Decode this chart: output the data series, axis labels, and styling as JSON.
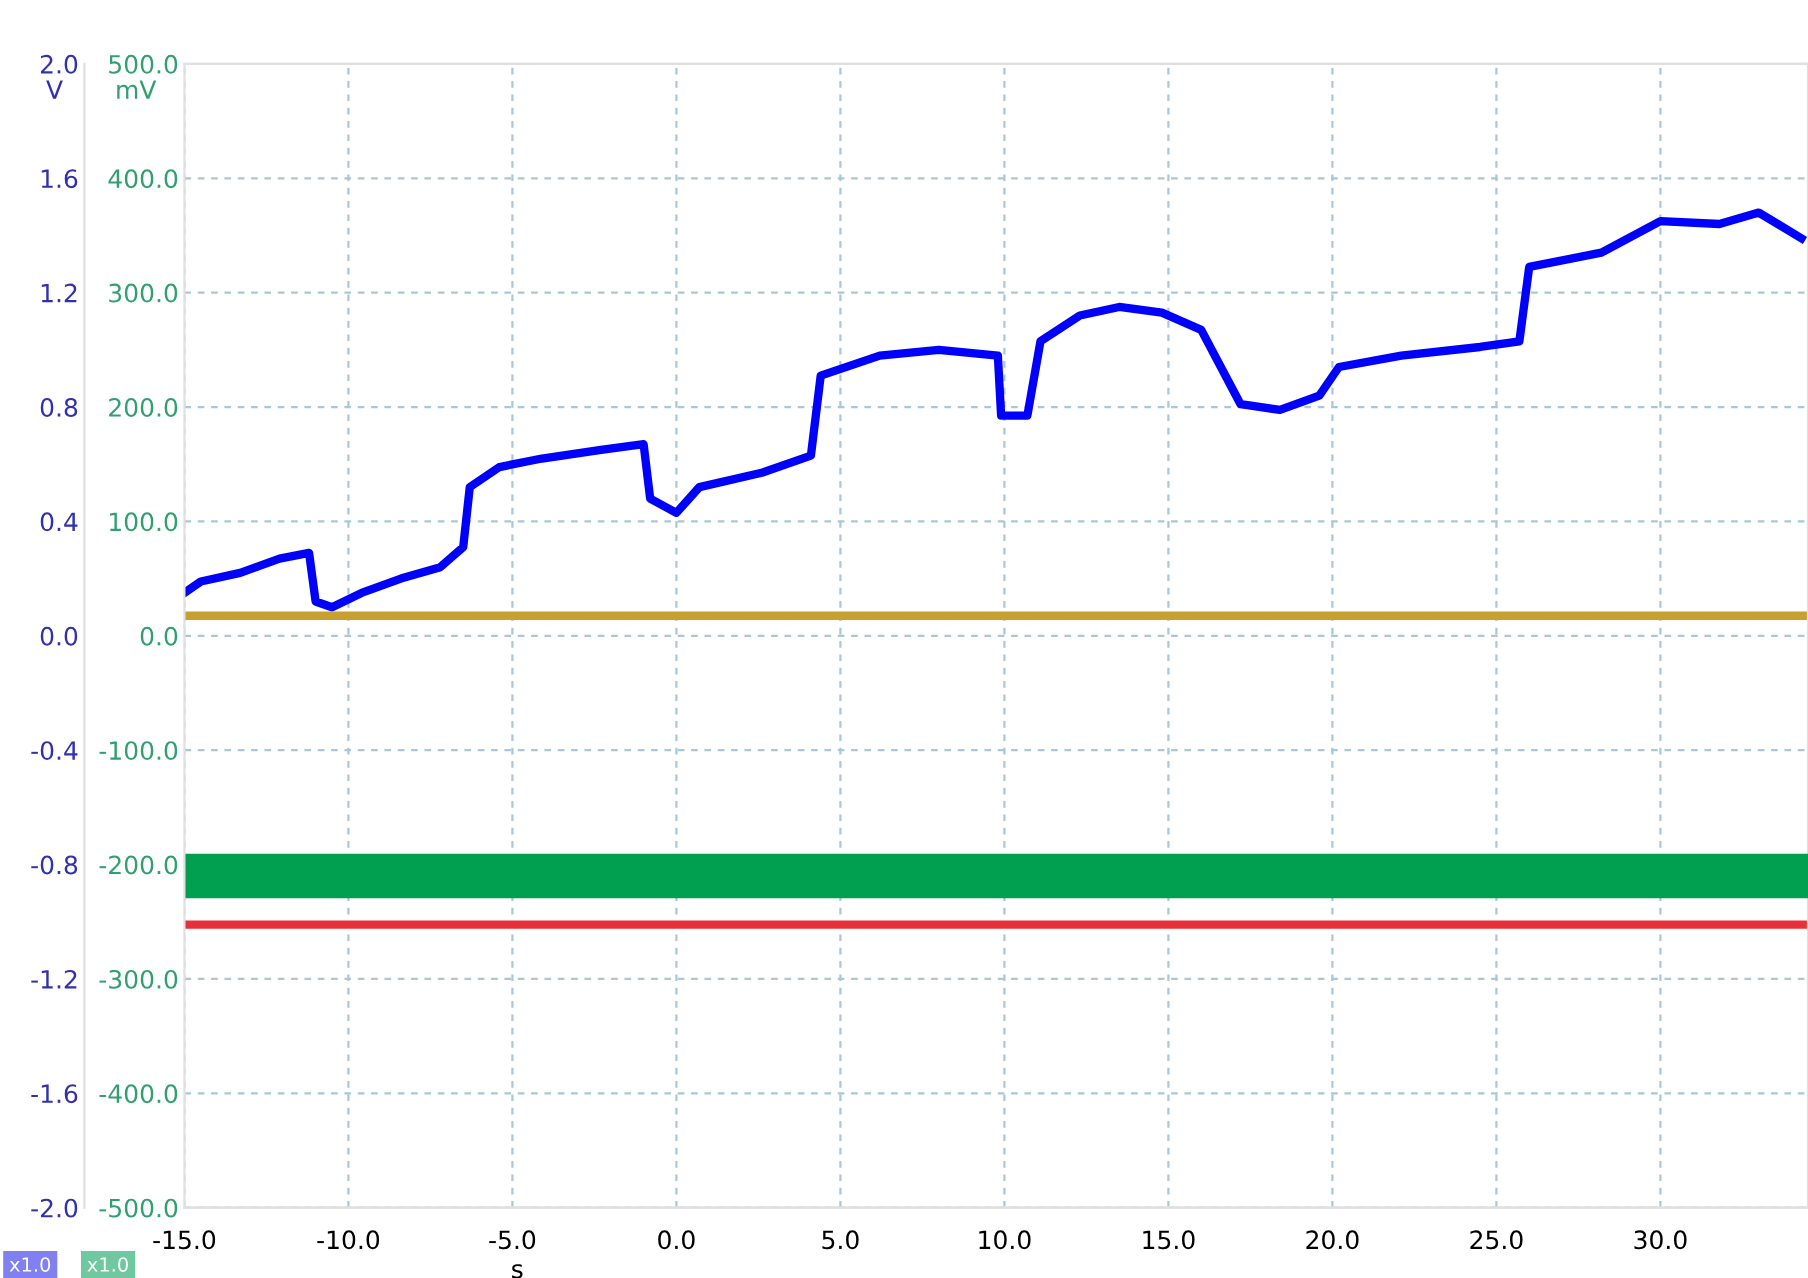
{
  "chart_data": {
    "type": "line",
    "xlabel": "s",
    "ylabel": "V",
    "y2label": "mV",
    "annotations": [
      "x1.0",
      "x1.0"
    ],
    "xlim": [
      -15,
      34.5
    ],
    "xticks": [
      {
        "value": -15,
        "label": "-15.0"
      },
      {
        "value": -10,
        "label": "-10.0"
      },
      {
        "value": -5,
        "label": "-5.0"
      },
      {
        "value": 0,
        "label": "0.0"
      },
      {
        "value": 5,
        "label": "5.0"
      },
      {
        "value": 10,
        "label": "10.0"
      },
      {
        "value": 15,
        "label": "15.0"
      },
      {
        "value": 20,
        "label": "20.0"
      },
      {
        "value": 25,
        "label": "25.0"
      },
      {
        "value": 30,
        "label": "30.0"
      }
    ],
    "ylim": [
      -2.0,
      2.0
    ],
    "yticks": [
      {
        "value": -2.0,
        "label": "-2.0"
      },
      {
        "value": -1.6,
        "label": "-1.6"
      },
      {
        "value": -1.2,
        "label": "-1.2"
      },
      {
        "value": -0.8,
        "label": "-0.8"
      },
      {
        "value": -0.4,
        "label": "-0.4"
      },
      {
        "value": 0,
        "label": "0.0"
      },
      {
        "value": 0.4,
        "label": "0.4"
      },
      {
        "value": 0.8,
        "label": "0.8"
      },
      {
        "value": 1.2,
        "label": "1.2"
      },
      {
        "value": 1.6,
        "label": "1.6"
      },
      {
        "value": 2.0,
        "label": "2.0"
      }
    ],
    "y2lim": [
      -500,
      500
    ],
    "y2ticks": [
      {
        "value": -500,
        "label": "-500.0"
      },
      {
        "value": -400,
        "label": "-400.0"
      },
      {
        "value": -300,
        "label": "-300.0"
      },
      {
        "value": -200,
        "label": "-200.0"
      },
      {
        "value": -100,
        "label": "-100.0"
      },
      {
        "value": 0,
        "label": "0.0"
      },
      {
        "value": 100,
        "label": "100.0"
      },
      {
        "value": 200,
        "label": "200.0"
      },
      {
        "value": 300,
        "label": "300.0"
      },
      {
        "value": 400,
        "label": "400.0"
      },
      {
        "value": 500,
        "label": "500.0"
      }
    ],
    "grid": true,
    "line_style": "solid",
    "series": [
      {
        "color": "#0000ff",
        "x": [
          -15,
          -14.5,
          -13.3,
          -12.1,
          -11.2,
          -11.0,
          -10.5,
          -9.6,
          -8.4,
          -7.2,
          -6.5,
          -6.3,
          -5.4,
          -4.1,
          -2.3,
          -1.0,
          -0.8,
          0,
          0.7,
          2.6,
          4.1,
          4.4,
          6.2,
          8.0,
          9.8,
          9.9,
          10.7,
          11.1,
          12.3,
          13.5,
          14.8,
          16.0,
          17.2,
          18.4,
          19.6,
          20.2,
          22.1,
          24.5,
          25.7,
          26.0,
          28.2,
          30.0,
          31.8,
          33.0,
          34.3
        ],
        "values": [
          0.15,
          0.19,
          0.22,
          0.27,
          0.29,
          0.12,
          0.1,
          0.15,
          0.2,
          0.24,
          0.31,
          0.52,
          0.59,
          0.62,
          0.65,
          0.67,
          0.48,
          0.43,
          0.52,
          0.57,
          0.63,
          0.91,
          0.98,
          1.0,
          0.98,
          0.77,
          0.77,
          1.03,
          1.12,
          1.15,
          1.13,
          1.07,
          0.81,
          0.79,
          0.84,
          0.94,
          0.98,
          1.01,
          1.03,
          1.29,
          1.34,
          1.45,
          1.44,
          1.48,
          1.39
        ]
      },
      {
        "color": "#c8a030",
        "x": [
          -15,
          34.5
        ],
        "values": [
          0.07,
          0.07
        ]
      },
      {
        "color": "#00a050",
        "axis": "y2",
        "x": [
          -15,
          34.5
        ],
        "values": [
          -210,
          -210
        ]
      },
      {
        "color": "#e8303a",
        "x": [
          -15,
          34.5
        ],
        "values": [
          -1.01,
          -1.01
        ]
      }
    ]
  }
}
